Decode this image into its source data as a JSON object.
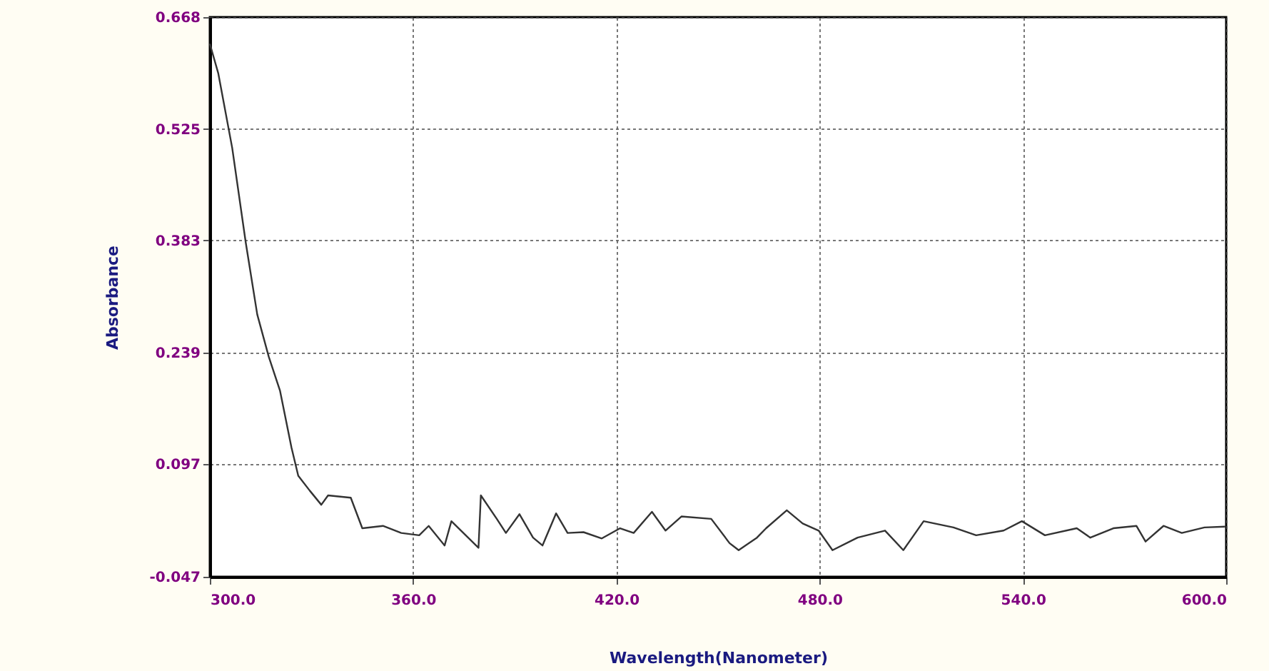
{
  "chart_data": {
    "type": "line",
    "xlabel": "Wavelength(Nanometer)",
    "ylabel": "Absorbance",
    "xlim": [
      300,
      600
    ],
    "ylim": [
      -0.047,
      0.668
    ],
    "xticks": [
      {
        "value": 300,
        "label": "300.0"
      },
      {
        "value": 360,
        "label": "360.0"
      },
      {
        "value": 420,
        "label": "420.0"
      },
      {
        "value": 480,
        "label": "480.0"
      },
      {
        "value": 540,
        "label": "540.0"
      },
      {
        "value": 600,
        "label": "600.0"
      }
    ],
    "yticks": [
      -0.047,
      0.097,
      0.239,
      0.383,
      0.525,
      0.668
    ],
    "grid": true,
    "marker": "none",
    "line_style": "solid",
    "series": [
      {
        "color": "#333333",
        "x": [
          300,
          302.5,
          306.6,
          310.6,
          314,
          317.4,
          320.7,
          324.1,
          326.1,
          329.5,
          332.9,
          334.9,
          341.6,
          345,
          351.1,
          356.5,
          361.8,
          364.6,
          369.3,
          371.3,
          379.3,
          380,
          384.7,
          387.4,
          391.4,
          395.4,
          398.2,
          402.2,
          405.6,
          410.3,
          415.7,
          421.1,
          425.1,
          430.5,
          434.5,
          439.2,
          448,
          453.4,
          456.1,
          461.5,
          464.2,
          470.3,
          475,
          479.7,
          483.8,
          491.2,
          499.3,
          504.7,
          510.7,
          519.5,
          526.2,
          534.3,
          539.7,
          546.5,
          555.9,
          559.9,
          566.7,
          573.5,
          576.2,
          581.5,
          586.9,
          593.6,
          599.7
        ],
        "values": [
          0.634,
          0.596,
          0.501,
          0.38,
          0.288,
          0.234,
          0.191,
          0.118,
          0.082,
          0.063,
          0.045,
          0.057,
          0.054,
          0.015,
          0.018,
          0.009,
          0.006,
          0.018,
          -0.007,
          0.024,
          -0.01,
          0.057,
          0.027,
          0.009,
          0.033,
          0.003,
          -0.007,
          0.034,
          0.009,
          0.01,
          0.002,
          0.015,
          0.009,
          0.036,
          0.012,
          0.03,
          0.027,
          -0.004,
          -0.013,
          0.003,
          0.015,
          0.038,
          0.021,
          0.012,
          -0.013,
          0.003,
          0.012,
          -0.013,
          0.024,
          0.016,
          0.006,
          0.012,
          0.024,
          0.006,
          0.015,
          0.003,
          0.015,
          0.018,
          -0.002,
          0.018,
          0.009,
          0.016,
          0.017
        ]
      }
    ]
  }
}
